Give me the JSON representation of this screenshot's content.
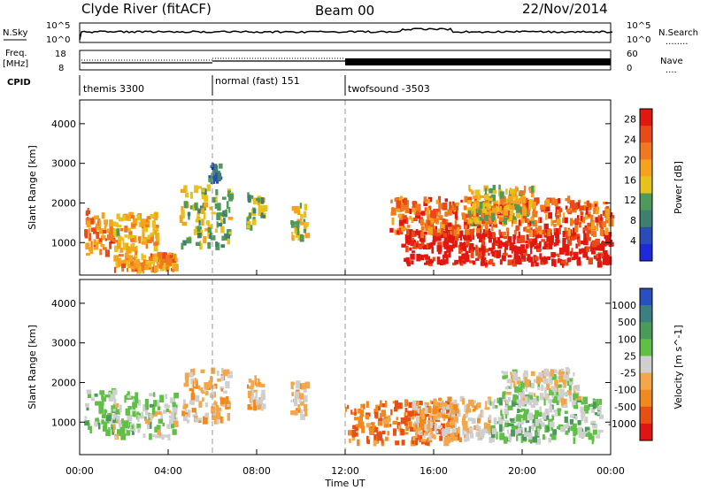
{
  "header": {
    "site": "Clyde River (fitACF)",
    "beam": "Beam 00",
    "date": "22/Nov/2014"
  },
  "strip_labels": {
    "nsky": "N.Sky",
    "nsearch": "N.Search",
    "freq_line1": "Freq.",
    "freq_line2": "[MHz]",
    "nave": "Nave",
    "cpid": "CPID",
    "nsearch_marker": "........",
    "nave_marker": "...."
  },
  "strip_ticks": {
    "nsky_left": [
      "10^5",
      "10^0"
    ],
    "nsky_right": [
      "10^5",
      "10^0"
    ],
    "freq_left": [
      "18",
      "8"
    ],
    "nave_right": [
      "60",
      "0"
    ]
  },
  "cpid_segments": [
    {
      "label": "themis 3300",
      "start_h": 0.0
    },
    {
      "label": "normal (fast) 151",
      "start_h": 6.0
    },
    {
      "label": "twofsound -3503",
      "start_h": 12.0
    }
  ],
  "colors": {
    "power_scale": [
      "#1e2ad8",
      "#2a4cb8",
      "#3f7f6e",
      "#4e9a58",
      "#e8c21a",
      "#f5a31f",
      "#f07820",
      "#e84a18",
      "#e01810"
    ],
    "velocity_scale": [
      "#2a4fc0",
      "#3c7f80",
      "#4a9a5a",
      "#5fc045",
      "#cfcfcf",
      "#f3a64a",
      "#f08a1f",
      "#e84f14",
      "#e01414"
    ]
  },
  "chart_data": [
    {
      "type": "heatmap",
      "title": "",
      "xlabel": "Time UT",
      "ylabel": "Slant Range [km]",
      "x_tick_labels": [
        "00:00",
        "04:00",
        "08:00",
        "12:00",
        "16:00",
        "20:00",
        "00:00"
      ],
      "x_range_hours": [
        0,
        24
      ],
      "y_tick_labels": [
        "1000",
        "2000",
        "3000",
        "4000"
      ],
      "ylim": [
        180,
        4600
      ],
      "colorbar": {
        "label": "Power [dB]",
        "tick_labels": [
          "4",
          "8",
          "12",
          "16",
          "20",
          "24",
          "28"
        ],
        "range": [
          0,
          30
        ]
      },
      "mode_change_hours": [
        6,
        12
      ],
      "echo_regions": [
        {
          "t0": 0.2,
          "t1": 1.5,
          "r0": 700,
          "r1": 1800,
          "value": 22
        },
        {
          "t0": 1.3,
          "t1": 3.5,
          "r0": 800,
          "r1": 1700,
          "value": 18
        },
        {
          "t0": 1.5,
          "t1": 4.3,
          "r0": 300,
          "r1": 700,
          "value": 20
        },
        {
          "t0": 4.5,
          "t1": 6.8,
          "r0": 900,
          "r1": 2400,
          "value": 13
        },
        {
          "t0": 5.8,
          "t1": 6.3,
          "r0": 2500,
          "r1": 3000,
          "value": 8
        },
        {
          "t0": 7.5,
          "t1": 8.3,
          "r0": 1300,
          "r1": 2200,
          "value": 14
        },
        {
          "t0": 9.5,
          "t1": 10.2,
          "r0": 1100,
          "r1": 2000,
          "value": 15
        },
        {
          "t0": 14.5,
          "t1": 24.0,
          "r0": 450,
          "r1": 1300,
          "value": 29
        },
        {
          "t0": 14.0,
          "t1": 24.0,
          "r0": 1200,
          "r1": 2100,
          "value": 23
        },
        {
          "t0": 17.5,
          "t1": 20.5,
          "r0": 1500,
          "r1": 2400,
          "value": 16
        }
      ]
    },
    {
      "type": "heatmap",
      "title": "",
      "xlabel": "Time UT",
      "ylabel": "Slant Range [km]",
      "x_tick_labels": [
        "00:00",
        "04:00",
        "08:00",
        "12:00",
        "16:00",
        "20:00",
        "00:00"
      ],
      "x_range_hours": [
        0,
        24
      ],
      "y_tick_labels": [
        "1000",
        "2000",
        "3000",
        "4000"
      ],
      "ylim": [
        180,
        4600
      ],
      "colorbar": {
        "label": "Velocity [m s^-1]",
        "tick_labels": [
          "1000",
          "500",
          "100",
          "25",
          "-25",
          "-100",
          "-500",
          "-1000"
        ],
        "range": [
          -1000,
          1000
        ]
      },
      "mode_change_hours": [
        6,
        12
      ],
      "echo_regions": [
        {
          "t0": 0.2,
          "t1": 1.6,
          "r0": 700,
          "r1": 1800,
          "value": 150
        },
        {
          "t0": 1.5,
          "t1": 4.3,
          "r0": 600,
          "r1": 1700,
          "value": 100
        },
        {
          "t0": 4.6,
          "t1": 6.8,
          "r0": 1000,
          "r1": 2300,
          "value": -200
        },
        {
          "t0": 7.5,
          "t1": 8.3,
          "r0": 1300,
          "r1": 2100,
          "value": -200
        },
        {
          "t0": 9.5,
          "t1": 10.2,
          "r0": 1100,
          "r1": 2000,
          "value": -200
        },
        {
          "t0": 12.0,
          "t1": 17.0,
          "r0": 450,
          "r1": 1500,
          "value": -500
        },
        {
          "t0": 15.0,
          "t1": 18.5,
          "r0": 500,
          "r1": 1600,
          "value": -150
        },
        {
          "t0": 18.5,
          "t1": 23.5,
          "r0": 500,
          "r1": 1600,
          "value": 150
        },
        {
          "t0": 19.0,
          "t1": 22.5,
          "r0": 1500,
          "r1": 2300,
          "value": 0
        }
      ]
    }
  ]
}
